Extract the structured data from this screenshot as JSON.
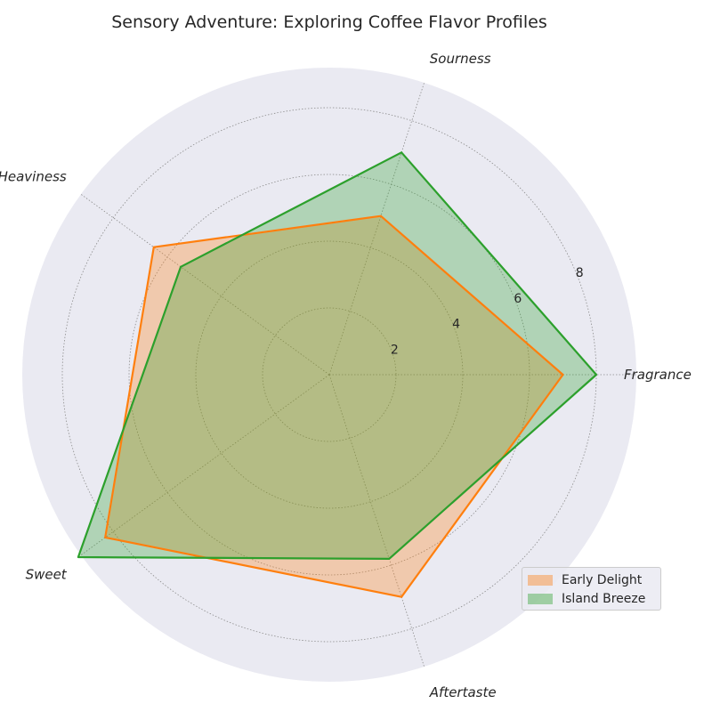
{
  "chart_data": {
    "type": "radar",
    "title": "Sensory Adventure: Exploring Coffee Flavor Profiles",
    "categories": [
      "Fragrance",
      "Sourness",
      "Heaviness",
      "Sweet",
      "Aftertaste"
    ],
    "rmax": 9.2,
    "rticks": [
      2,
      4,
      6,
      8
    ],
    "grid": true,
    "legend_position": "lower-right",
    "series": [
      {
        "name": "Early Delight",
        "values": [
          7.0,
          5.0,
          6.5,
          8.3,
          7.0
        ],
        "color": "#ff7f0e"
      },
      {
        "name": "Island Breeze",
        "values": [
          8.0,
          7.0,
          5.5,
          9.3,
          5.8
        ],
        "color": "#2ca02c"
      }
    ]
  }
}
